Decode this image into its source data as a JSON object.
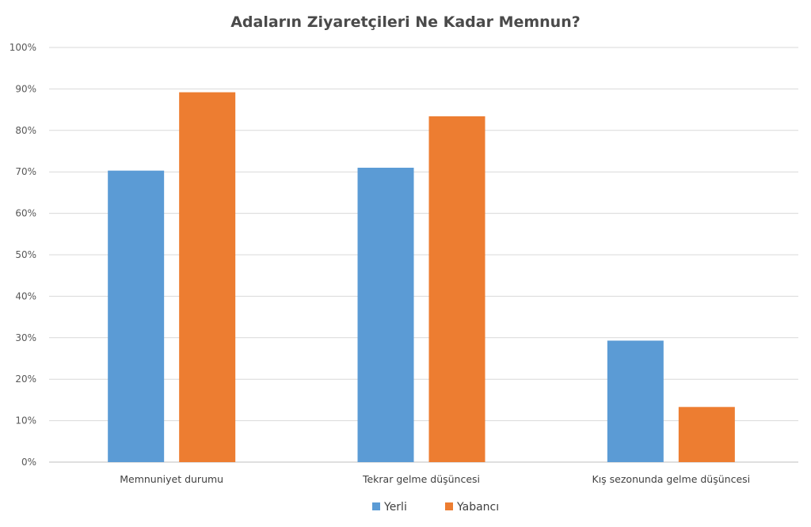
{
  "chart_data": {
    "type": "bar",
    "title": "Adaların Ziyaretçileri Ne Kadar Memnun?",
    "categories": [
      "Memnuniyet durumu",
      "Tekrar gelme düşüncesi",
      "Kış sezonunda gelme düşüncesi"
    ],
    "series": [
      {
        "name": "Yerli",
        "values": [
          70.3,
          71.0,
          29.3
        ],
        "color": "#5b9bd5"
      },
      {
        "name": "Yabancı",
        "values": [
          89.2,
          83.4,
          13.3
        ],
        "color": "#ed7d31"
      }
    ],
    "ylim": [
      0,
      100
    ],
    "yticks": [
      "0%",
      "10%",
      "20%",
      "30%",
      "40%",
      "50%",
      "60%",
      "70%",
      "80%",
      "90%",
      "100%"
    ],
    "grid": true,
    "legend": "bottom"
  }
}
